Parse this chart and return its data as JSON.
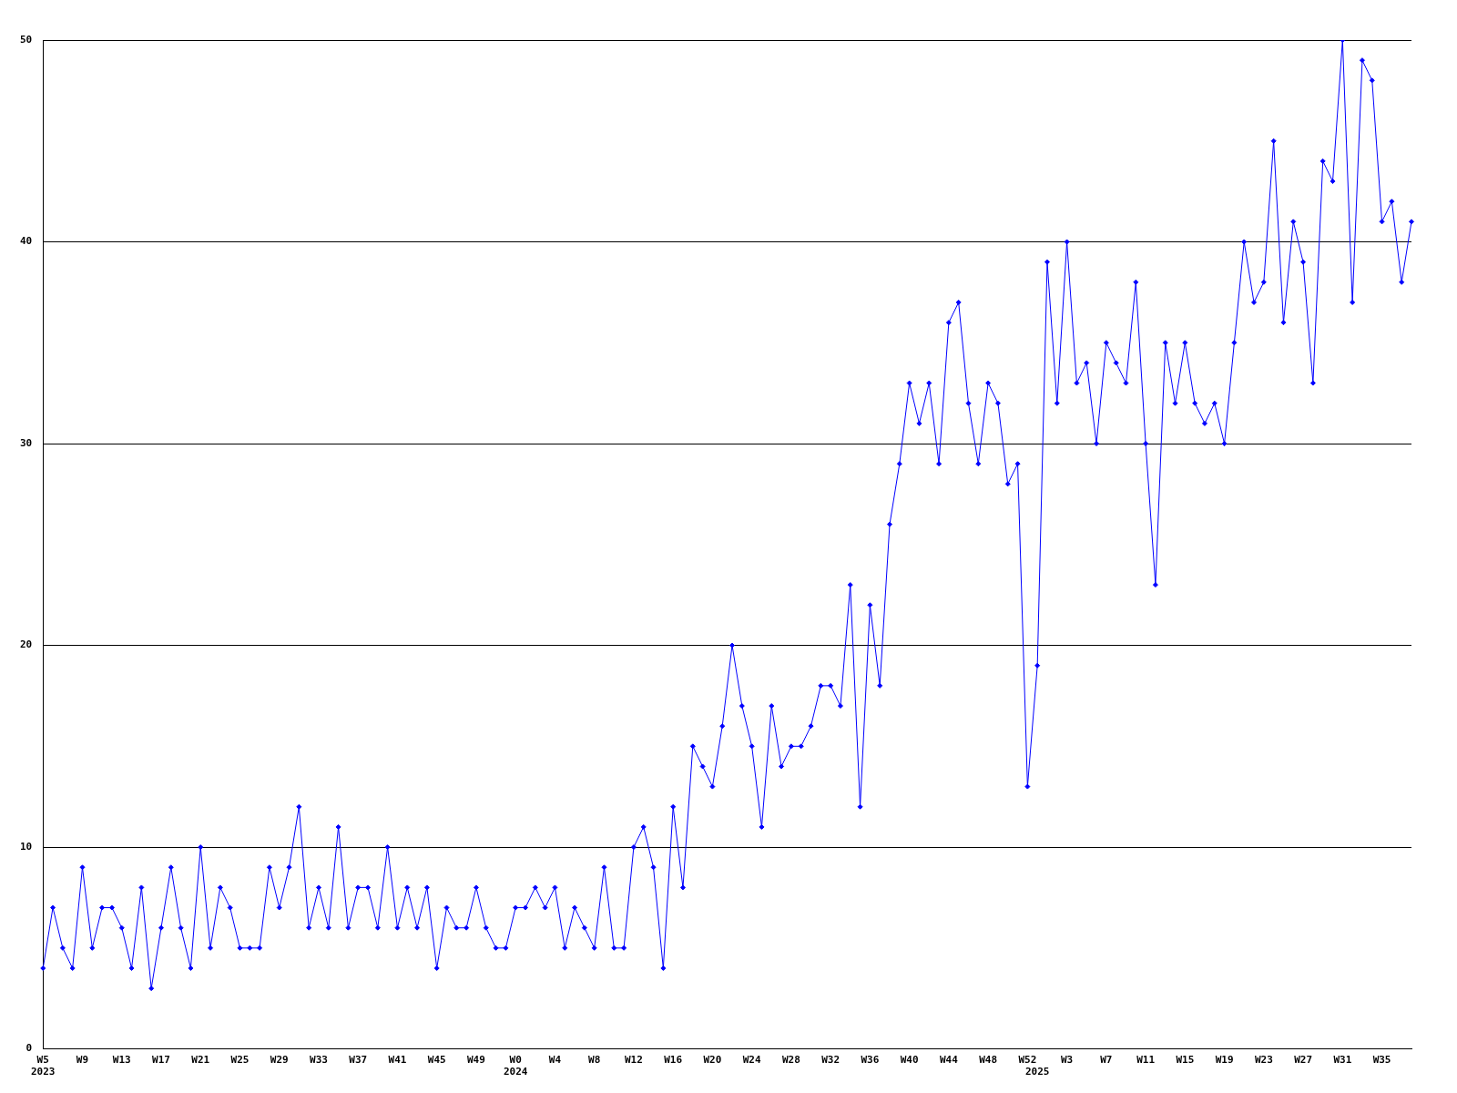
{
  "chart_data": {
    "type": "line",
    "categories": [
      "W5\n2023",
      null,
      null,
      null,
      "W9",
      null,
      null,
      null,
      "W13",
      null,
      null,
      null,
      "W17",
      null,
      null,
      null,
      "W21",
      null,
      null,
      null,
      "W25",
      null,
      null,
      null,
      "W29",
      null,
      null,
      null,
      "W33",
      null,
      null,
      null,
      "W37",
      null,
      null,
      null,
      "W41",
      null,
      null,
      null,
      "W45",
      null,
      null,
      null,
      "W49",
      null,
      null,
      null,
      "W0\n2024",
      null,
      null,
      null,
      "W4",
      null,
      null,
      null,
      "W8",
      null,
      null,
      null,
      "W12",
      null,
      null,
      null,
      "W16",
      null,
      null,
      null,
      "W20",
      null,
      null,
      null,
      "W24",
      null,
      null,
      null,
      "W28",
      null,
      null,
      null,
      "W32",
      null,
      null,
      null,
      "W36",
      null,
      null,
      null,
      "W40",
      null,
      null,
      null,
      "W44",
      null,
      null,
      null,
      "W48",
      null,
      null,
      null,
      "W52",
      "\n2025",
      null,
      null,
      "W3",
      null,
      null,
      null,
      "W7",
      null,
      null,
      null,
      "W11",
      null,
      null,
      null,
      "W15",
      null,
      null,
      null,
      "W19",
      null,
      null,
      null,
      "W23",
      null,
      null,
      null,
      "W27",
      null,
      null,
      null,
      "W31",
      null,
      null,
      null,
      "W35",
      null,
      null,
      null
    ],
    "values": [
      4,
      7,
      5,
      4,
      9,
      5,
      7,
      7,
      6,
      4,
      8,
      3,
      6,
      9,
      6,
      4,
      10,
      5,
      8,
      7,
      5,
      5,
      5,
      9,
      7,
      9,
      12,
      6,
      8,
      6,
      11,
      6,
      8,
      8,
      6,
      10,
      6,
      8,
      6,
      8,
      4,
      7,
      6,
      6,
      8,
      6,
      5,
      5,
      7,
      7,
      8,
      7,
      8,
      5,
      7,
      6,
      5,
      9,
      5,
      5,
      10,
      11,
      9,
      4,
      12,
      8,
      15,
      14,
      13,
      16,
      20,
      17,
      15,
      11,
      17,
      14,
      15,
      15,
      16,
      18,
      18,
      17,
      23,
      12,
      22,
      18,
      26,
      29,
      33,
      31,
      33,
      29,
      36,
      37,
      32,
      29,
      33,
      32,
      28,
      29,
      13,
      19,
      39,
      32,
      40,
      33,
      34,
      30,
      35,
      34,
      33,
      38,
      30,
      23,
      35,
      32,
      35,
      32,
      31,
      32,
      30,
      35,
      40,
      37,
      38,
      45,
      36,
      41,
      39,
      33,
      44,
      43,
      50,
      37,
      49,
      48,
      41,
      42,
      38,
      41
    ],
    "color": "#0000ff",
    "ylim": [
      0,
      50
    ],
    "yticks": [
      0,
      10,
      20,
      30,
      40,
      50
    ],
    "grid": "y",
    "marker": "diamond",
    "line_style": "solid"
  }
}
